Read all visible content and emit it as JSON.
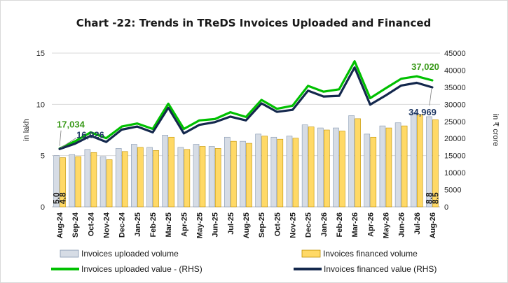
{
  "chart_data": {
    "type": "bar",
    "title": "Chart -22: Trends in TReDS Invoices Uploaded and Financed",
    "ylabel": "in lakh",
    "y2label": "in ₹ crore",
    "ylim": [
      0,
      15
    ],
    "y2lim": [
      0,
      45000
    ],
    "yticks": [
      0,
      5,
      10,
      15
    ],
    "y2ticks": [
      0,
      5000,
      10000,
      15000,
      20000,
      25000,
      30000,
      35000,
      40000,
      45000
    ],
    "legend_position": "bottom",
    "categories": [
      "Aug-24",
      "Sep-24",
      "Oct-24",
      "Nov-24",
      "Dec-24",
      "Jan-25",
      "Feb-25",
      "Mar-25",
      "Apr-25",
      "May-25",
      "Jun-25",
      "Jul-25",
      "Aug-25",
      "Sep-25",
      "Oct-25",
      "Nov-25",
      "Dec-25",
      "Jan-26",
      "Feb-26",
      "Mar-26",
      "Apr-26",
      "May-26",
      "Jun-26",
      "Jul-26",
      "Aug-26"
    ],
    "series": [
      {
        "name": "Invoices uploaded volume",
        "type": "bar",
        "axis": "left",
        "color": "#d6dce5",
        "values": [
          5.0,
          5.1,
          5.6,
          4.9,
          5.7,
          6.1,
          5.8,
          7.0,
          5.8,
          6.1,
          5.9,
          6.8,
          6.4,
          7.1,
          6.8,
          6.9,
          8.0,
          7.7,
          7.7,
          8.9,
          7.1,
          7.9,
          8.2,
          9.2,
          8.8
        ]
      },
      {
        "name": "Invoices financed volume",
        "type": "bar",
        "axis": "left",
        "color": "#ffd966",
        "values": [
          4.8,
          4.9,
          5.3,
          4.6,
          5.4,
          5.8,
          5.5,
          6.8,
          5.6,
          5.9,
          5.7,
          6.4,
          6.2,
          6.9,
          6.6,
          6.7,
          7.8,
          7.5,
          7.4,
          8.6,
          6.8,
          7.7,
          7.9,
          9.0,
          8.5
        ]
      },
      {
        "name": "Invoices uploaded value - (RHS)",
        "type": "line",
        "axis": "right",
        "color": "#00c000",
        "values": [
          17034,
          19200,
          21800,
          20100,
          23500,
          24400,
          22800,
          30200,
          22800,
          25300,
          25700,
          27700,
          26300,
          31300,
          28700,
          29600,
          35400,
          33700,
          34400,
          42600,
          31800,
          34700,
          37500,
          38200,
          37020
        ]
      },
      {
        "name": "Invoices financed value (RHS)",
        "type": "line",
        "axis": "right",
        "color": "#14284d",
        "values": [
          16926,
          18500,
          20800,
          19000,
          22600,
          23500,
          21800,
          29000,
          21500,
          24000,
          24800,
          26400,
          25300,
          30300,
          27800,
          28400,
          34000,
          32300,
          32500,
          40800,
          29900,
          32600,
          35500,
          36300,
          34969
        ]
      }
    ],
    "bar_labels": [
      {
        "category_index": 0,
        "series": 0,
        "text": "5.0"
      },
      {
        "category_index": 0,
        "series": 1,
        "text": "4.8"
      },
      {
        "category_index": 24,
        "series": 0,
        "text": "8.8"
      },
      {
        "category_index": 24,
        "series": 1,
        "text": "8.5"
      }
    ],
    "line_labels": [
      {
        "category_index": 0,
        "series": 2,
        "text": "17,034"
      },
      {
        "category_index": 0,
        "series": 3,
        "text": "16,926"
      },
      {
        "category_index": 24,
        "series": 2,
        "text": "37,020"
      },
      {
        "category_index": 24,
        "series": 3,
        "text": "34,969"
      }
    ]
  }
}
